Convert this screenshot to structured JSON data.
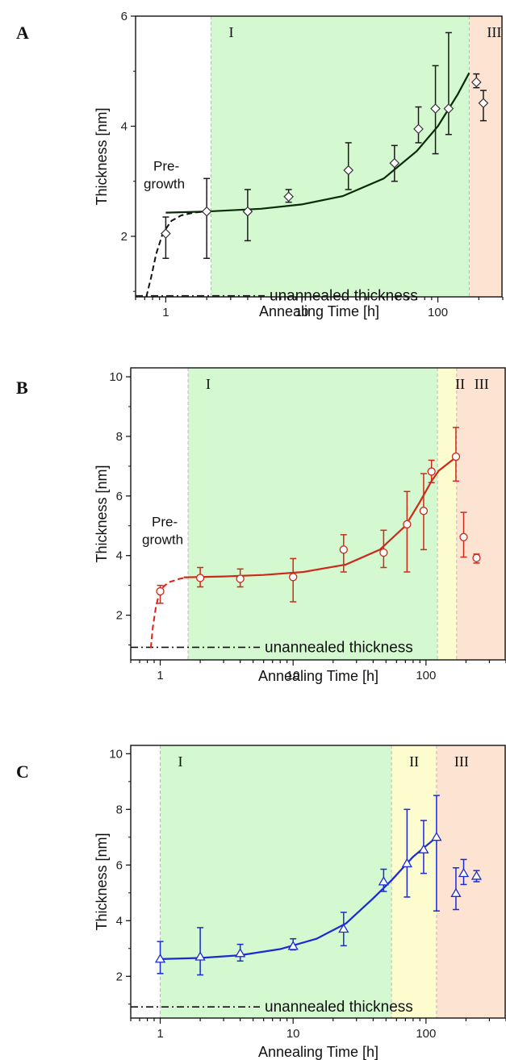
{
  "chart_data": [
    {
      "type": "scatter",
      "panel": "A",
      "xlabel": "Annealing Time [h]",
      "ylabel": "Thickness [nm]",
      "xscale": "log",
      "xlim": [
        0.6,
        300
      ],
      "ylim": [
        0.9,
        6
      ],
      "xticks": [
        {
          "v": 1,
          "label": "1"
        },
        {
          "v": 10,
          "label": "10"
        },
        {
          "v": 100,
          "label": "100"
        }
      ],
      "yticks": [
        {
          "v": 2,
          "label": "2"
        },
        {
          "v": 4,
          "label": "4"
        },
        {
          "v": 6,
          "label": "6"
        }
      ],
      "color": "#1a1a1a",
      "fitColor": "#0a2a0a",
      "marker": "diamond",
      "regions": [
        {
          "label": "I",
          "from": 2.15,
          "to": 170,
          "color": "#d4f8cf"
        },
        {
          "label": "III",
          "from": 170,
          "to": 300,
          "color": "#fde3d2"
        }
      ],
      "points": [
        {
          "x": 1,
          "y": 2.05,
          "lo": 1.6,
          "hi": 2.35
        },
        {
          "x": 2,
          "y": 2.45,
          "lo": 1.6,
          "hi": 3.05
        },
        {
          "x": 4,
          "y": 2.45,
          "lo": 1.92,
          "hi": 2.85
        },
        {
          "x": 8,
          "y": 2.72,
          "lo": 2.62,
          "hi": 2.85
        },
        {
          "x": 22,
          "y": 3.2,
          "lo": 2.85,
          "hi": 3.7
        },
        {
          "x": 48,
          "y": 3.33,
          "lo": 3.0,
          "hi": 3.65
        },
        {
          "x": 72,
          "y": 3.95,
          "lo": 3.7,
          "hi": 4.35
        },
        {
          "x": 96,
          "y": 4.32,
          "lo": 3.5,
          "hi": 5.1
        },
        {
          "x": 120,
          "y": 4.32,
          "lo": 3.85,
          "hi": 5.7
        },
        {
          "x": 192,
          "y": 4.8,
          "lo": 4.7,
          "hi": 4.95
        },
        {
          "x": 216,
          "y": 4.42,
          "lo": 4.1,
          "hi": 4.65
        }
      ],
      "fit": [
        [
          1,
          2.43
        ],
        [
          2,
          2.45
        ],
        [
          5,
          2.5
        ],
        [
          10,
          2.58
        ],
        [
          20,
          2.73
        ],
        [
          40,
          3.05
        ],
        [
          70,
          3.55
        ],
        [
          100,
          4.0
        ],
        [
          140,
          4.58
        ],
        [
          170,
          4.97
        ]
      ],
      "pregrowth": [
        [
          0.72,
          0.9
        ],
        [
          0.78,
          1.25
        ],
        [
          0.85,
          1.68
        ],
        [
          0.95,
          2.05
        ],
        [
          1.1,
          2.28
        ],
        [
          1.3,
          2.38
        ],
        [
          1.6,
          2.43
        ],
        [
          2.0,
          2.45
        ]
      ],
      "pregrowthLabel": [
        "Pre-",
        "growth"
      ],
      "pregrowthColor": "#111111",
      "unannealed": {
        "y": 0.92,
        "label": "unannealed thickness"
      }
    },
    {
      "type": "scatter",
      "panel": "B",
      "xlabel": "Annealing Time [h]",
      "ylabel": "Thickness [nm]",
      "xscale": "log",
      "xlim": [
        0.6,
        400
      ],
      "ylim": [
        0.5,
        10.3
      ],
      "xticks": [
        {
          "v": 1,
          "label": "1"
        },
        {
          "v": 10,
          "label": "10"
        },
        {
          "v": 100,
          "label": "100"
        }
      ],
      "yticks": [
        {
          "v": 2,
          "label": "2"
        },
        {
          "v": 4,
          "label": "4"
        },
        {
          "v": 6,
          "label": "6"
        },
        {
          "v": 8,
          "label": "8"
        },
        {
          "v": 10,
          "label": "10"
        }
      ],
      "color": "#cc2a1a",
      "fitColor": "#cc2a1a",
      "marker": "circle",
      "regions": [
        {
          "label": "I",
          "from": 1.62,
          "to": 122,
          "color": "#d4f8cf"
        },
        {
          "label": "II",
          "from": 122,
          "to": 170,
          "color": "#fdfccf"
        },
        {
          "label": "III",
          "from": 170,
          "to": 400,
          "color": "#fde3d2"
        }
      ],
      "points": [
        {
          "x": 1,
          "y": 2.8,
          "lo": 2.4,
          "hi": 3.0
        },
        {
          "x": 2,
          "y": 3.25,
          "lo": 2.95,
          "hi": 3.6
        },
        {
          "x": 4,
          "y": 3.22,
          "lo": 2.95,
          "hi": 3.55
        },
        {
          "x": 10,
          "y": 3.28,
          "lo": 2.45,
          "hi": 3.9
        },
        {
          "x": 24,
          "y": 4.2,
          "lo": 3.45,
          "hi": 4.7
        },
        {
          "x": 48,
          "y": 4.1,
          "lo": 3.6,
          "hi": 4.85
        },
        {
          "x": 72,
          "y": 5.05,
          "lo": 3.45,
          "hi": 6.15
        },
        {
          "x": 96,
          "y": 5.5,
          "lo": 4.2,
          "hi": 6.75
        },
        {
          "x": 110,
          "y": 6.82,
          "lo": 6.45,
          "hi": 7.2
        },
        {
          "x": 168,
          "y": 7.32,
          "lo": 6.5,
          "hi": 8.3
        },
        {
          "x": 192,
          "y": 4.62,
          "lo": 3.95,
          "hi": 5.45
        },
        {
          "x": 240,
          "y": 3.92,
          "lo": 3.75,
          "hi": 4.05
        }
      ],
      "fit": [
        [
          1.5,
          3.27
        ],
        [
          3,
          3.3
        ],
        [
          6,
          3.35
        ],
        [
          12,
          3.45
        ],
        [
          25,
          3.7
        ],
        [
          45,
          4.2
        ],
        [
          70,
          5.0
        ],
        [
          90,
          5.8
        ],
        [
          110,
          6.5
        ],
        [
          125,
          6.85
        ],
        [
          168,
          7.3
        ]
      ],
      "pregrowth": [
        [
          0.85,
          0.9
        ],
        [
          0.88,
          1.6
        ],
        [
          0.93,
          2.3
        ],
        [
          1.0,
          2.85
        ],
        [
          1.15,
          3.1
        ],
        [
          1.4,
          3.22
        ],
        [
          1.6,
          3.27
        ]
      ],
      "pregrowthLabel": [
        "Pre-",
        "growth"
      ],
      "pregrowthColor": "#e01e14",
      "unannealed": {
        "y": 0.92,
        "label": "unannealed thickness"
      }
    },
    {
      "type": "scatter",
      "panel": "C",
      "xlabel": "Annealing Time [h]",
      "ylabel": "Thickness [nm]",
      "xscale": "log",
      "xlim": [
        0.6,
        400
      ],
      "ylim": [
        0.5,
        10.3
      ],
      "xticks": [
        {
          "v": 1,
          "label": "1"
        },
        {
          "v": 10,
          "label": "10"
        },
        {
          "v": 100,
          "label": "100"
        }
      ],
      "yticks": [
        {
          "v": 2,
          "label": "2"
        },
        {
          "v": 4,
          "label": "4"
        },
        {
          "v": 6,
          "label": "6"
        },
        {
          "v": 8,
          "label": "8"
        },
        {
          "v": 10,
          "label": "10"
        }
      ],
      "color": "#1a2ad4",
      "fitColor": "#1a2ad4",
      "marker": "triangle",
      "regions": [
        {
          "label": "I",
          "from": 1.0,
          "to": 55,
          "color": "#d4f8cf"
        },
        {
          "label": "II",
          "from": 55,
          "to": 120,
          "color": "#fdfccf"
        },
        {
          "label": "III",
          "from": 120,
          "to": 400,
          "color": "#fde3d2"
        }
      ],
      "points": [
        {
          "x": 1,
          "y": 2.62,
          "lo": 2.1,
          "hi": 3.25
        },
        {
          "x": 2,
          "y": 2.7,
          "lo": 2.05,
          "hi": 3.75
        },
        {
          "x": 4,
          "y": 2.82,
          "lo": 2.55,
          "hi": 3.15
        },
        {
          "x": 10,
          "y": 3.08,
          "lo": 2.95,
          "hi": 3.35
        },
        {
          "x": 24,
          "y": 3.7,
          "lo": 3.1,
          "hi": 4.3
        },
        {
          "x": 48,
          "y": 5.4,
          "lo": 5.05,
          "hi": 5.85
        },
        {
          "x": 72,
          "y": 6.05,
          "lo": 4.85,
          "hi": 8.0
        },
        {
          "x": 96,
          "y": 6.55,
          "lo": 5.7,
          "hi": 7.6
        },
        {
          "x": 120,
          "y": 7.0,
          "lo": 4.35,
          "hi": 8.5
        },
        {
          "x": 168,
          "y": 4.98,
          "lo": 4.4,
          "hi": 5.9
        },
        {
          "x": 192,
          "y": 5.7,
          "lo": 5.3,
          "hi": 6.2
        },
        {
          "x": 240,
          "y": 5.6,
          "lo": 5.4,
          "hi": 5.8
        }
      ],
      "fit": [
        [
          1,
          2.62
        ],
        [
          2,
          2.66
        ],
        [
          4,
          2.76
        ],
        [
          8,
          2.98
        ],
        [
          15,
          3.35
        ],
        [
          25,
          3.9
        ],
        [
          40,
          4.8
        ],
        [
          55,
          5.45
        ],
        [
          80,
          6.3
        ],
        [
          120,
          7.0
        ]
      ],
      "pregrowth": [],
      "pregrowthLabel": [],
      "pregrowthColor": "#1a2ad4",
      "unannealed": {
        "y": 0.9,
        "label": "unannealed thickness"
      }
    }
  ]
}
